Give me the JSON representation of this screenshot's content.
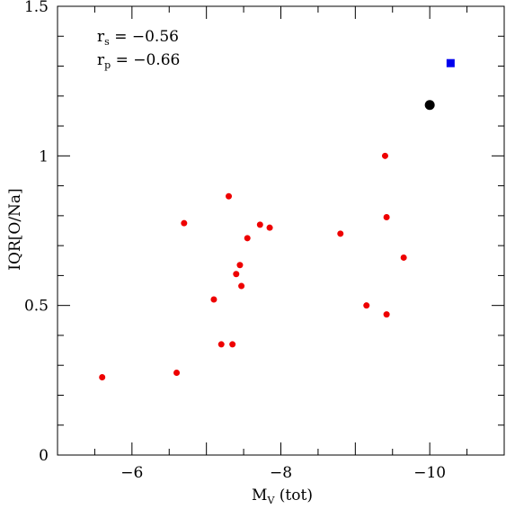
{
  "chart_data": {
    "type": "scatter",
    "xlabel_main": "M",
    "xlabel_sub": "V",
    "xlabel_rest": "(tot)",
    "ylabel": "IQR[O/Na]",
    "xlim": [
      -5,
      -11
    ],
    "ylim": [
      0,
      1.5
    ],
    "xticks": [
      {
        "value": -6,
        "label": "−6"
      },
      {
        "value": -8,
        "label": "−8"
      },
      {
        "value": -10,
        "label": "−10"
      }
    ],
    "yticks": [
      {
        "value": 0,
        "label": "0"
      },
      {
        "value": 0.5,
        "label": "0.5"
      },
      {
        "value": 1,
        "label": "1"
      },
      {
        "value": 1.5,
        "label": "1.5"
      }
    ],
    "minor_x_step": 0.5,
    "minor_y_step": 0.1,
    "annotations": [
      {
        "main": "r",
        "sub": "s",
        "value": "= −0.56"
      },
      {
        "main": "r",
        "sub": "p",
        "value": "= −0.66"
      }
    ],
    "series": [
      {
        "marker": "circle-small",
        "color": "#ee0000",
        "points": [
          {
            "x": -5.6,
            "y": 0.26
          },
          {
            "x": -6.6,
            "y": 0.275
          },
          {
            "x": -6.7,
            "y": 0.775
          },
          {
            "x": -7.1,
            "y": 0.52
          },
          {
            "x": -7.2,
            "y": 0.37
          },
          {
            "x": -7.3,
            "y": 0.865
          },
          {
            "x": -7.35,
            "y": 0.37
          },
          {
            "x": -7.4,
            "y": 0.605
          },
          {
            "x": -7.45,
            "y": 0.635
          },
          {
            "x": -7.47,
            "y": 0.565
          },
          {
            "x": -7.55,
            "y": 0.725
          },
          {
            "x": -7.72,
            "y": 0.77
          },
          {
            "x": -7.85,
            "y": 0.76
          },
          {
            "x": -8.8,
            "y": 0.74
          },
          {
            "x": -9.15,
            "y": 0.5
          },
          {
            "x": -9.4,
            "y": 1.0
          },
          {
            "x": -9.42,
            "y": 0.795
          },
          {
            "x": -9.42,
            "y": 0.47
          },
          {
            "x": -9.65,
            "y": 0.66
          }
        ]
      },
      {
        "marker": "circle-large",
        "color": "#000000",
        "points": [
          {
            "x": -10.0,
            "y": 1.17
          }
        ]
      },
      {
        "marker": "square",
        "color": "#0000ee",
        "points": [
          {
            "x": -10.28,
            "y": 1.31
          }
        ]
      }
    ]
  }
}
